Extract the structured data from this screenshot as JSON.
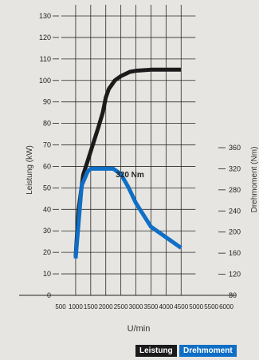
{
  "chart_data": {
    "type": "line",
    "xlabel": "U/min",
    "ylabel_left": "Leistung (kW)",
    "ylabel_right": "Drehmoment (Nm)",
    "annotation": "320 Nm",
    "x_ticks": [
      500,
      1000,
      1500,
      2000,
      2500,
      3000,
      3500,
      4000,
      4500,
      5000,
      5500,
      6000
    ],
    "xlim": [
      500,
      6000
    ],
    "y_left_ticks": [
      0,
      10,
      20,
      30,
      40,
      50,
      60,
      70,
      80,
      90,
      100,
      110,
      120,
      130
    ],
    "ylim_left": [
      0,
      130
    ],
    "y_right_ticks": [
      80,
      120,
      160,
      200,
      240,
      280,
      320,
      360
    ],
    "ylim_right": [
      80,
      360
    ],
    "grid": true,
    "legend_position": "bottom-right",
    "series": [
      {
        "name": "Leistung",
        "axis": "left",
        "color": "#1b1b1b",
        "x": [
          1000,
          1100,
          1250,
          1500,
          1750,
          1900,
          2000,
          2100,
          2300,
          2500,
          2800,
          3000,
          3500,
          4000,
          4500
        ],
        "y": [
          18,
          40,
          56,
          67,
          78,
          85,
          92,
          96,
          100,
          102,
          104,
          104.5,
          105,
          105,
          105
        ]
      },
      {
        "name": "Drehmoment",
        "axis": "right",
        "color": "#0f6fc6",
        "x": [
          1000,
          1200,
          1400,
          1500,
          1750,
          2000,
          2250,
          2500,
          2750,
          3000,
          3500,
          4000,
          4500
        ],
        "y": [
          150,
          288,
          315,
          320,
          320,
          320,
          320,
          310,
          285,
          255,
          210,
          190,
          170
        ]
      }
    ]
  }
}
